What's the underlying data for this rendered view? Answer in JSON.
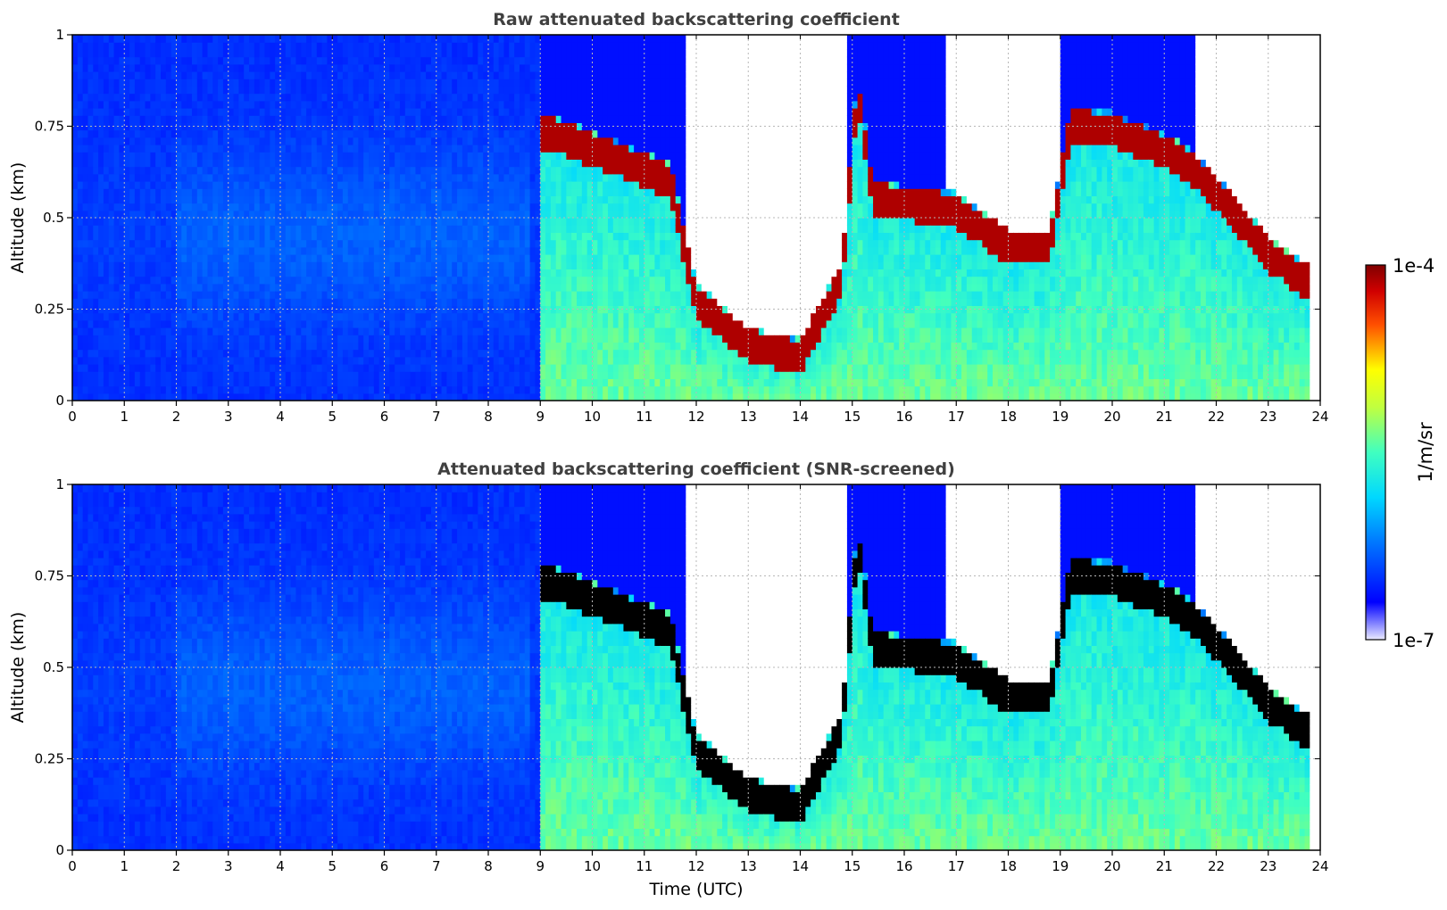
{
  "chart_data": [
    {
      "type": "heatmap",
      "title": "Raw attenuated backscattering coefficient",
      "xlabel": "",
      "ylabel": "Altitude (km)",
      "xlim": [
        0,
        24
      ],
      "ylim": [
        0,
        1
      ],
      "x_ticks": [
        "0",
        "1",
        "2",
        "3",
        "4",
        "5",
        "6",
        "7",
        "8",
        "9",
        "10",
        "11",
        "12",
        "13",
        "14",
        "15",
        "16",
        "17",
        "18",
        "19",
        "20",
        "21",
        "22",
        "23",
        "24"
      ],
      "y_ticks": [
        "0",
        "0.25",
        "0.5",
        "0.75",
        "1"
      ],
      "grid": true,
      "color_scale": "log-jet",
      "cloud_layers": [
        {
          "t": 9.2,
          "h": 0.73
        },
        {
          "t": 10.5,
          "h": 0.66
        },
        {
          "t": 11.5,
          "h": 0.6
        },
        {
          "t": 12.0,
          "h": 0.27
        },
        {
          "t": 13.0,
          "h": 0.15
        },
        {
          "t": 14.0,
          "h": 0.12
        },
        {
          "t": 14.8,
          "h": 0.33
        },
        {
          "t": 15.1,
          "h": 0.85
        },
        {
          "t": 15.4,
          "h": 0.55
        },
        {
          "t": 17.0,
          "h": 0.52
        },
        {
          "t": 18.0,
          "h": 0.42
        },
        {
          "t": 18.8,
          "h": 0.42
        },
        {
          "t": 19.2,
          "h": 0.75
        },
        {
          "t": 20.0,
          "h": 0.74
        },
        {
          "t": 21.0,
          "h": 0.68
        },
        {
          "t": 21.5,
          "h": 0.64
        },
        {
          "t": 22.3,
          "h": 0.52
        },
        {
          "t": 23.0,
          "h": 0.4
        },
        {
          "t": 23.8,
          "h": 0.32
        }
      ]
    },
    {
      "type": "heatmap",
      "title": "Attenuated backscattering coefficient (SNR-screened)",
      "xlabel": "Time (UTC)",
      "ylabel": "Altitude (km)",
      "xlim": [
        0,
        24
      ],
      "ylim": [
        0,
        1
      ],
      "x_ticks": [
        "0",
        "1",
        "2",
        "3",
        "4",
        "5",
        "6",
        "7",
        "8",
        "9",
        "10",
        "11",
        "12",
        "13",
        "14",
        "15",
        "16",
        "17",
        "18",
        "19",
        "20",
        "21",
        "22",
        "23",
        "24"
      ],
      "y_ticks": [
        "0",
        "0.25",
        "0.5",
        "0.75",
        "1"
      ],
      "grid": true,
      "color_scale": "log-jet",
      "saturated_color": "#000000",
      "cloud_layers": [
        {
          "t": 9.2,
          "h": 0.73
        },
        {
          "t": 10.5,
          "h": 0.66
        },
        {
          "t": 11.5,
          "h": 0.6
        },
        {
          "t": 12.0,
          "h": 0.27
        },
        {
          "t": 13.0,
          "h": 0.15
        },
        {
          "t": 14.0,
          "h": 0.12
        },
        {
          "t": 14.8,
          "h": 0.33
        },
        {
          "t": 15.1,
          "h": 0.85
        },
        {
          "t": 15.4,
          "h": 0.55
        },
        {
          "t": 17.0,
          "h": 0.52
        },
        {
          "t": 18.0,
          "h": 0.42
        },
        {
          "t": 18.8,
          "h": 0.42
        },
        {
          "t": 19.2,
          "h": 0.75
        },
        {
          "t": 20.0,
          "h": 0.74
        },
        {
          "t": 21.0,
          "h": 0.68
        },
        {
          "t": 21.5,
          "h": 0.64
        },
        {
          "t": 22.3,
          "h": 0.52
        },
        {
          "t": 23.0,
          "h": 0.4
        },
        {
          "t": 23.8,
          "h": 0.32
        }
      ]
    }
  ],
  "colorbar": {
    "max_label": "1e-4",
    "min_label": "1e-7",
    "unit_label": "1/m/sr",
    "min_value": 1e-07,
    "max_value": 0.0001,
    "scale": "log",
    "colormap": "jet"
  }
}
